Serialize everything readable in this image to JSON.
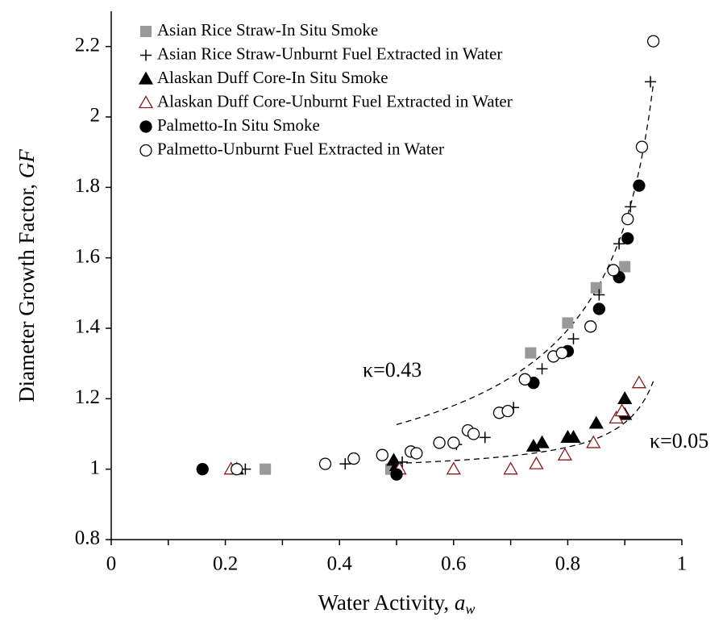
{
  "chart_data": {
    "type": "scatter",
    "xlabel": [
      "Water Activity, ",
      "a",
      "w"
    ],
    "ylabel": [
      "Diameter Growth Factor, ",
      "GF"
    ],
    "xlim": [
      0,
      1
    ],
    "xticks": [
      0,
      0.2,
      0.4,
      0.6,
      0.8,
      1
    ],
    "xminorticks": [
      0.1,
      0.3,
      0.5,
      0.7,
      0.9
    ],
    "ylim": [
      0.8,
      2.3
    ],
    "yticks": [
      0.8,
      1,
      1.2,
      1.4,
      1.6,
      1.8,
      2,
      2.2
    ],
    "legend": "upper-left",
    "series": [
      {
        "name": "Asian Rice Straw-In Situ Smoke",
        "marker": "square",
        "color": "#999999",
        "x": [
          0.27,
          0.49,
          0.735,
          0.8,
          0.85,
          0.9
        ],
        "values": [
          1.0,
          1.0,
          1.33,
          1.415,
          1.515,
          1.575
        ]
      },
      {
        "name": "Asian Rice Straw-Unburnt Fuel Extracted in Water",
        "marker": "plus",
        "color": "#000000",
        "x": [
          0.235,
          0.41,
          0.51,
          0.605,
          0.655,
          0.705,
          0.755,
          0.81,
          0.855,
          0.89,
          0.91,
          0.945
        ],
        "values": [
          1.0,
          1.015,
          1.02,
          1.07,
          1.09,
          1.175,
          1.285,
          1.37,
          1.495,
          1.64,
          1.745,
          2.1
        ]
      },
      {
        "name": "Alaskan Duff Core-In Situ Smoke",
        "marker": "triangle",
        "color": "#000000",
        "x": [
          0.22,
          0.495,
          0.5,
          0.74,
          0.755,
          0.8,
          0.81,
          0.85,
          0.9,
          0.9
        ],
        "values": [
          1.0,
          1.025,
          1.01,
          1.065,
          1.075,
          1.09,
          1.09,
          1.13,
          1.2,
          1.155
        ]
      },
      {
        "name": "Alaskan Duff Core-Unburnt Fuel Extracted in Water",
        "marker": "triangle-open",
        "color": "#8b1a1a",
        "x": [
          0.21,
          0.505,
          0.6,
          0.7,
          0.745,
          0.795,
          0.845,
          0.885,
          0.895,
          0.925
        ],
        "values": [
          1.0,
          1.0,
          1.0,
          1.0,
          1.015,
          1.04,
          1.075,
          1.145,
          1.165,
          1.245
        ]
      },
      {
        "name": "Palmetto-In Situ Smoke",
        "marker": "circle",
        "color": "#000000",
        "x": [
          0.16,
          0.5,
          0.74,
          0.8,
          0.855,
          0.89,
          0.905,
          0.925
        ],
        "values": [
          1.0,
          0.985,
          1.245,
          1.335,
          1.455,
          1.545,
          1.655,
          1.805
        ]
      },
      {
        "name": "Palmetto-Unburnt Fuel Extracted in Water",
        "marker": "circle-open",
        "color": "#000000",
        "x": [
          0.22,
          0.375,
          0.425,
          0.475,
          0.525,
          0.535,
          0.575,
          0.6,
          0.625,
          0.635,
          0.68,
          0.695,
          0.725,
          0.775,
          0.79,
          0.84,
          0.88,
          0.905,
          0.93,
          0.95
        ],
        "values": [
          1.0,
          1.015,
          1.03,
          1.04,
          1.05,
          1.045,
          1.075,
          1.075,
          1.11,
          1.1,
          1.16,
          1.165,
          1.255,
          1.32,
          1.33,
          1.405,
          1.565,
          1.71,
          1.915,
          2.215
        ]
      }
    ],
    "fits": [
      {
        "kappa": 0.43,
        "label": "κ=0.43",
        "x_range": [
          0.5,
          0.95
        ]
      },
      {
        "kappa": 0.05,
        "label": "κ=0.05",
        "x_range": [
          0.5,
          0.95
        ]
      }
    ]
  }
}
